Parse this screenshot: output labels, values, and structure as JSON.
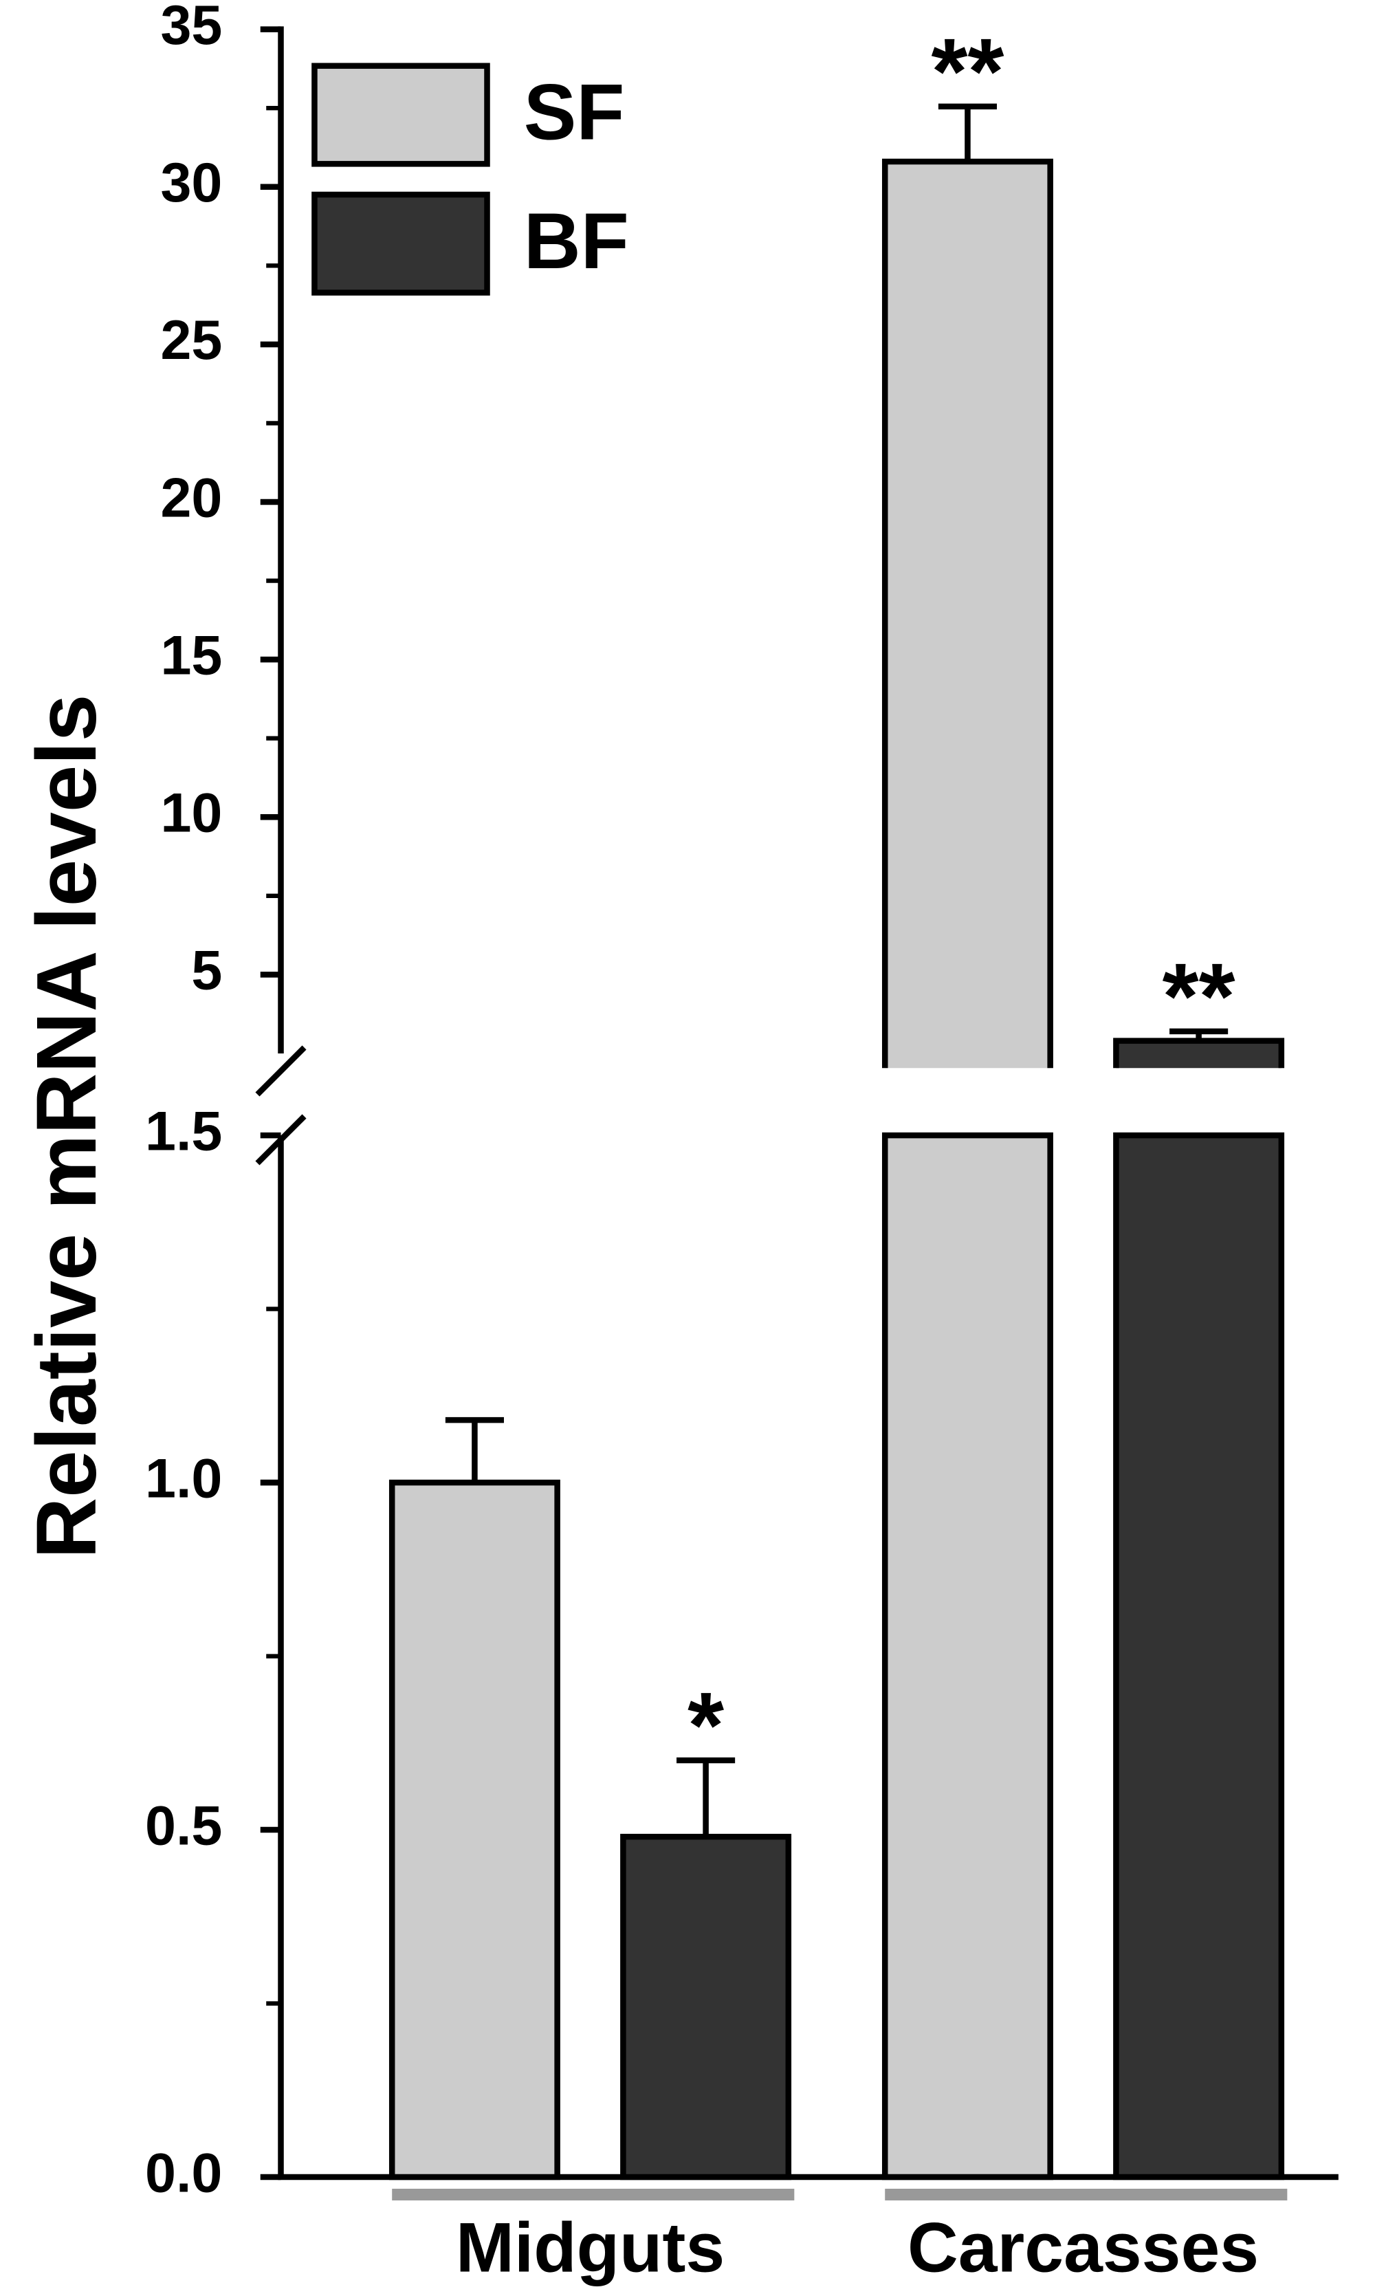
{
  "chart_data": {
    "type": "bar",
    "y_label": "Relative mRNA levels",
    "categories": [
      "Midguts",
      "Carcasses"
    ],
    "series": [
      {
        "name": "SF",
        "color": "#cccccc",
        "values": [
          1.0,
          30.8
        ],
        "errors": [
          0.09,
          1.75
        ],
        "significance": [
          null,
          "**"
        ]
      },
      {
        "name": "BF",
        "color": "#333333",
        "values": [
          0.49,
          2.9
        ],
        "errors": [
          0.11,
          0.3
        ],
        "significance": [
          "*",
          "**"
        ]
      }
    ],
    "ylim": [
      0,
      35
    ],
    "y_break": [
      1.5,
      2.5
    ],
    "yticks": [
      {
        "value": 0,
        "label": "0.0"
      },
      0.5,
      {
        "value": 1,
        "label": "1.0"
      },
      1.5,
      5,
      10,
      15,
      20,
      25,
      30,
      35
    ],
    "yminorticks": [
      0.25,
      0.75,
      1.25,
      7.5,
      12.5,
      17.5,
      22.5,
      27.5,
      32.5
    ],
    "legend": "top-left"
  }
}
